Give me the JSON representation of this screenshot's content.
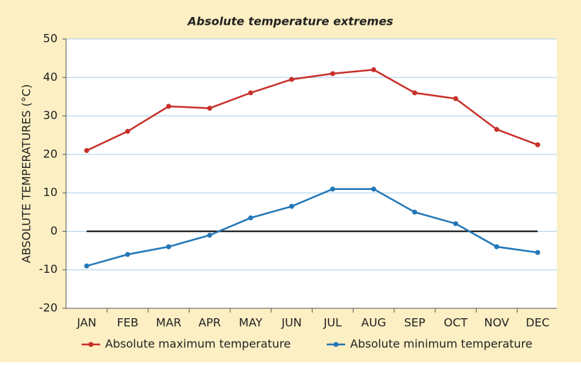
{
  "chart_data": {
    "type": "line",
    "title": "Absolute temperature extremes",
    "ylabel": "ABSOLUTE TEMPERATURES (°C)",
    "categories": [
      "JAN",
      "FEB",
      "MAR",
      "APR",
      "MAY",
      "JUN",
      "JUL",
      "AUG",
      "SEP",
      "OCT",
      "NOV",
      "DEC"
    ],
    "series": [
      {
        "name": "Absolute maximum temperature",
        "color": "#c7302a",
        "values": [
          21,
          26,
          32.5,
          32,
          36,
          39.5,
          41,
          42,
          36,
          34.5,
          26.5,
          22.5
        ]
      },
      {
        "name": "Absolute minimum temperature",
        "color": "#2277b8",
        "values": [
          -9,
          -6,
          -4,
          -1,
          3.5,
          6.5,
          11,
          11,
          5,
          2,
          -4,
          -5.5
        ]
      }
    ],
    "ylim": [
      -20,
      50
    ],
    "yticks": [
      -20,
      -10,
      0,
      10,
      20,
      30,
      40,
      50
    ],
    "grid": true,
    "legend": "bottom"
  }
}
